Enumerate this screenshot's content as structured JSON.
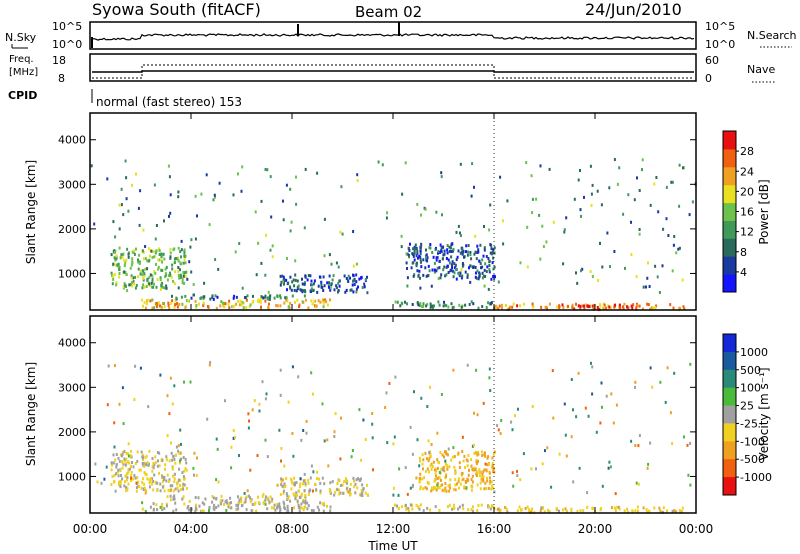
{
  "header": {
    "station": "Syowa South (fitACF)",
    "beam": "Beam 02",
    "date": "24/Jun/2010"
  },
  "top_panels": {
    "nsky_label": "N.Sky",
    "nsky_ticks": [
      "10^5",
      "10^0"
    ],
    "nsearch_label": "N.Search",
    "nsearch_ticks": [
      "10^5",
      "10^0"
    ],
    "freq_label_1": "Freq.",
    "freq_label_2": "[MHz]",
    "freq_ticks": [
      "18",
      "8"
    ],
    "nave_label": "Nave",
    "nave_ticks": [
      "60",
      "0"
    ],
    "cpid_label": "CPID",
    "cpid_text": "normal (fast stereo) 153"
  },
  "chart_data": [
    {
      "type": "heatmap",
      "title": "",
      "xlabel": "Time UT",
      "ylabel": "Slant Range [km]",
      "x_ticks": [
        "00:00",
        "04:00",
        "08:00",
        "12:00",
        "16:00",
        "20:00",
        "00:00"
      ],
      "xlim_hours": [
        0,
        24
      ],
      "y_ticks": [
        1000,
        2000,
        3000,
        4000
      ],
      "ylim": [
        180,
        4600
      ],
      "colorbar": {
        "label": "Power [dB]",
        "ticks": [
          "4",
          "8",
          "12",
          "16",
          "20",
          "24",
          "28"
        ],
        "range": [
          0,
          30
        ],
        "colors": [
          "#1414ff",
          "#1a3aa0",
          "#2a6a5a",
          "#3f9a5a",
          "#6cc24a",
          "#e8e020",
          "#f0a020",
          "#f06010",
          "#e81010"
        ]
      },
      "echo_regions": [
        {
          "t_start": 0.8,
          "t_end": 3.8,
          "r_min": 700,
          "r_max": 1600,
          "value": 14
        },
        {
          "t_start": 2.0,
          "t_end": 9.5,
          "r_min": 250,
          "r_max": 450,
          "value": 20
        },
        {
          "t_start": 3.0,
          "t_end": 8.5,
          "r_min": 450,
          "r_max": 550,
          "value": 8
        },
        {
          "t_start": 7.5,
          "t_end": 11.0,
          "r_min": 600,
          "r_max": 1000,
          "value": 6
        },
        {
          "t_start": 12.5,
          "t_end": 16.0,
          "r_min": 900,
          "r_max": 1700,
          "value": 6
        },
        {
          "t_start": 12.0,
          "t_end": 16.0,
          "r_min": 250,
          "r_max": 400,
          "value": 10
        },
        {
          "t_start": 16.0,
          "t_end": 23.5,
          "r_min": 220,
          "r_max": 350,
          "value": 22
        },
        {
          "t_start": 18.5,
          "t_end": 21.5,
          "r_min": 220,
          "r_max": 330,
          "value": 28
        }
      ]
    },
    {
      "type": "heatmap",
      "title": "",
      "xlabel": "Time UT",
      "ylabel": "Slant Range [km]",
      "x_ticks": [
        "00:00",
        "04:00",
        "08:00",
        "12:00",
        "16:00",
        "20:00",
        "00:00"
      ],
      "xlim_hours": [
        0,
        24
      ],
      "y_ticks": [
        1000,
        2000,
        3000,
        4000
      ],
      "ylim": [
        180,
        4600
      ],
      "colorbar": {
        "label": "Velocity [m s⁻¹]",
        "ticks": [
          "1000",
          "500",
          "100",
          "25",
          "-25",
          "-100",
          "-500",
          "-1000"
        ],
        "range": [
          -1200,
          1200
        ],
        "colors": [
          "#1428d8",
          "#1c5aa0",
          "#2a8a7a",
          "#4aba3a",
          "#a0a0a0",
          "#f0d020",
          "#f0a020",
          "#f06010",
          "#e81010"
        ]
      },
      "echo_regions": [
        {
          "t_start": 0.8,
          "t_end": 3.8,
          "r_min": 700,
          "r_max": 1600,
          "value": -150
        },
        {
          "t_start": 2.0,
          "t_end": 9.5,
          "r_min": 250,
          "r_max": 450,
          "value": -40
        },
        {
          "t_start": 3.0,
          "t_end": 8.5,
          "r_min": 450,
          "r_max": 600,
          "value": -80
        },
        {
          "t_start": 7.5,
          "t_end": 11.0,
          "r_min": 600,
          "r_max": 1000,
          "value": -150
        },
        {
          "t_start": 13.0,
          "t_end": 16.0,
          "r_min": 700,
          "r_max": 1600,
          "value": -400
        },
        {
          "t_start": 12.0,
          "t_end": 16.0,
          "r_min": 250,
          "r_max": 400,
          "value": -200
        },
        {
          "t_start": 16.0,
          "t_end": 23.5,
          "r_min": 220,
          "r_max": 350,
          "value": -300
        }
      ]
    }
  ]
}
